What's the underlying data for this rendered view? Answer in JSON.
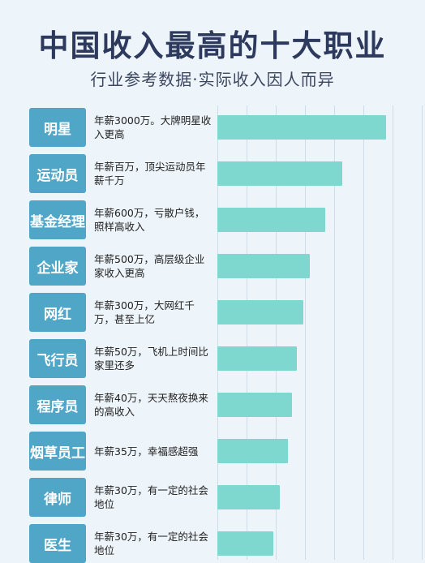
{
  "title": "中国收入最高的十大职业",
  "subtitle": "行业参考数据·实际收入因人而异",
  "colors": {
    "label_bg": "#4fa6c7",
    "bar": "#7fd8cf",
    "background": "#edf4fa",
    "title": "#2d3a5e"
  },
  "chart_data": {
    "type": "bar",
    "orientation": "horizontal",
    "title": "中国收入最高的十大职业",
    "subtitle": "行业参考数据·实际收入因人而异",
    "xlabel": "",
    "ylabel": "",
    "grid": true,
    "categories": [
      "明星",
      "运动员",
      "基金经理",
      "企业家",
      "网红",
      "飞行员",
      "程序员",
      "烟草员工",
      "律师",
      "医生"
    ],
    "notes": [
      "年薪3000万。大牌明星收入更高",
      "年薪百万，顶尖运动员年薪千万",
      "年薪600万，亏散户钱，照样高收入",
      "年薪500万，高层级企业家收入更高",
      "年薪300万，大网红千万，甚至上亿",
      "年薪50万，飞机上时间比家里还多",
      "年薪40万，天天熬夜换来的高收入",
      "年薪35万，幸福感超强",
      "年薪30万，有一定的社会地位",
      "年薪30万，有一定的社会地位"
    ],
    "values": [
      100,
      74,
      64,
      55,
      51,
      47,
      44,
      42,
      37,
      33
    ]
  }
}
